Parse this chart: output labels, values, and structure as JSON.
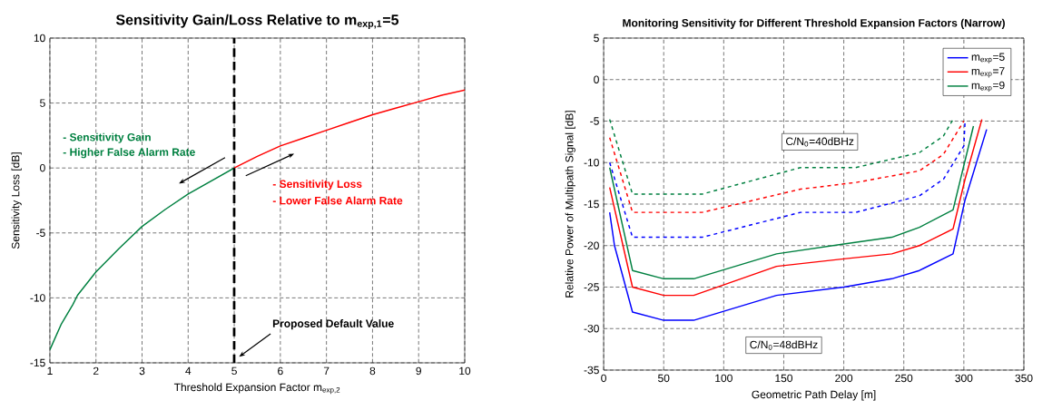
{
  "chart_data": [
    {
      "type": "line",
      "title": "Sensitivity Gain/Loss Relative to m$_{exp,1}$=5",
      "xlabel": "Threshold Expansion Factor m$_{exp,2}$",
      "ylabel": "Sensitivity Loss [dB]",
      "xlim": [
        1,
        10
      ],
      "ylim": [
        -15,
        10
      ],
      "xticks": [
        1,
        2,
        3,
        4,
        5,
        6,
        7,
        8,
        9,
        10
      ],
      "yticks": [
        -15,
        -10,
        -5,
        0,
        5,
        10
      ],
      "grid": true,
      "line_style": "solid",
      "series": [
        {
          "color": "#008040",
          "x": [
            1,
            1.25,
            1.5,
            1.6,
            2,
            2.5,
            3,
            3.5,
            4,
            4.5,
            5
          ],
          "values": [
            -14,
            -12,
            -10.5,
            -9.8,
            -8,
            -6.2,
            -4.5,
            -3.2,
            -2,
            -1,
            0
          ]
        },
        {
          "color": "#ff0000",
          "x": [
            5,
            5.5,
            6,
            6.5,
            7,
            7.5,
            8,
            8.5,
            9,
            9.5,
            10
          ],
          "values": [
            0,
            0.9,
            1.7,
            2.3,
            2.9,
            3.5,
            4.1,
            4.6,
            5.1,
            5.6,
            6
          ]
        }
      ],
      "ref_lines": [
        {
          "axis": "x",
          "value": 5,
          "label": "Proposed Default Value",
          "color": "#000000",
          "line_style": "dashed"
        }
      ],
      "annotations": [
        "- Sensitivity Gain",
        "- Higher False Alarm Rate",
        "- Sensitivity Loss",
        "- Lower False Alarm Rate"
      ]
    },
    {
      "type": "line",
      "title": "Monitoring Sensitivity for Different Threshold Expansion Factors (Narrow)",
      "xlabel": "Geometric Path Delay [m]",
      "ylabel": "Relative Power of Multipath Signal [dB]",
      "xlim": [
        0,
        350
      ],
      "ylim": [
        -35,
        5
      ],
      "xticks": [
        0,
        50,
        100,
        150,
        200,
        250,
        300,
        350
      ],
      "yticks": [
        -35,
        -30,
        -25,
        -20,
        -15,
        -10,
        -5,
        0,
        5
      ],
      "grid": true,
      "legend": "top right",
      "series": [
        {
          "name": "m$_{exp}$=5",
          "color": "#0000ff",
          "line_style": "solid",
          "x": [
            5,
            9,
            24,
            50,
            75,
            144,
            200,
            240,
            263,
            291,
            301,
            319
          ],
          "values": [
            -16,
            -20,
            -28,
            -29,
            -29,
            -26,
            -25,
            -24,
            -23,
            -21,
            -14.5,
            -6
          ]
        },
        {
          "name": "m$_{exp}$=7",
          "color": "#ff0000",
          "line_style": "solid",
          "x": [
            5,
            24,
            50,
            75,
            144,
            200,
            240,
            263,
            291,
            301,
            315
          ],
          "values": [
            -13,
            -25,
            -26,
            -26,
            -22.5,
            -21.6,
            -21,
            -20,
            -18,
            -12,
            -4.8
          ]
        },
        {
          "name": "m$_{exp}$=9",
          "color": "#008040",
          "line_style": "solid",
          "x": [
            5,
            24,
            50,
            75,
            144,
            200,
            240,
            263,
            291,
            308
          ],
          "values": [
            -10.6,
            -23,
            -24,
            -24,
            -21,
            -19.8,
            -19,
            -17.8,
            -15.7,
            -5.6
          ]
        },
        {
          "color": "#0000ff",
          "line_style": "dashed",
          "x": [
            5,
            24,
            82,
            164,
            210,
            263,
            283,
            300,
            301
          ],
          "values": [
            -10,
            -19,
            -19,
            -16,
            -16,
            -14,
            -12,
            -8,
            -5
          ]
        },
        {
          "color": "#ff0000",
          "line_style": "dashed",
          "x": [
            5,
            24,
            82,
            164,
            210,
            263,
            283,
            300
          ],
          "values": [
            -7,
            -16,
            -16,
            -13.2,
            -12.4,
            -11,
            -9,
            -5
          ]
        },
        {
          "color": "#008040",
          "line_style": "dashed",
          "x": [
            5,
            24,
            82,
            164,
            210,
            263,
            283,
            291
          ],
          "values": [
            -4.8,
            -13.8,
            -13.8,
            -10.6,
            -10.6,
            -8.8,
            -6.8,
            -4.8
          ]
        }
      ],
      "annotations": [
        "C/N$_{0}$=40dBHz",
        "C/N$_{0}$=48dBHz"
      ]
    }
  ]
}
